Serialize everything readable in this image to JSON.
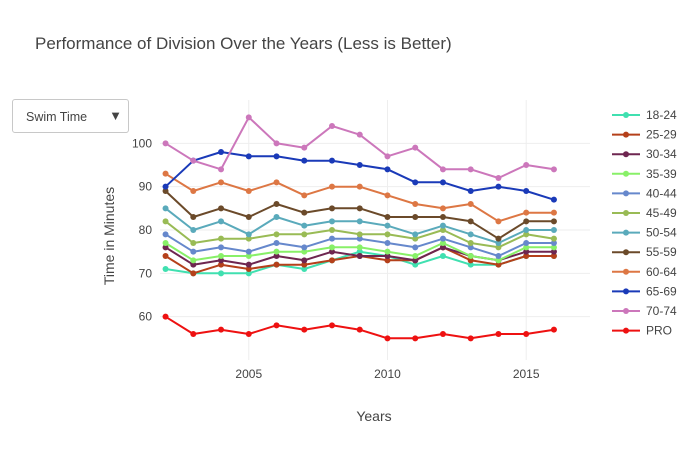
{
  "chart_data": {
    "type": "line",
    "title": "Performance of Division Over the Years (Less is Better)",
    "xlabel": "Years",
    "ylabel": "Time in Minutes",
    "xlim": [
      2001.8,
      2017.3
    ],
    "ylim": [
      50,
      110
    ],
    "xticks": [
      2005,
      2010,
      2015
    ],
    "yticks": [
      60,
      70,
      80,
      90,
      100
    ],
    "grid": true,
    "legend_position": "right",
    "x": [
      2002,
      2003,
      2004,
      2005,
      2006,
      2007,
      2008,
      2009,
      2010,
      2011,
      2012,
      2013,
      2014,
      2015,
      2016
    ],
    "series": [
      {
        "name": "18-24",
        "color": "#40e0b0",
        "values": [
          71,
          70,
          70,
          70,
          72,
          71,
          73,
          75,
          74,
          72,
          74,
          72,
          72,
          74,
          74
        ]
      },
      {
        "name": "25-29",
        "color": "#b5401a",
        "values": [
          74,
          70,
          72,
          71,
          72,
          72,
          73,
          74,
          73,
          73,
          76,
          73,
          72,
          74,
          74
        ]
      },
      {
        "name": "30-34",
        "color": "#6e2650",
        "values": [
          76,
          72,
          73,
          72,
          74,
          73,
          75,
          74,
          74,
          73,
          76,
          74,
          73,
          75,
          75
        ]
      },
      {
        "name": "35-39",
        "color": "#88f068",
        "values": [
          77,
          73,
          74,
          74,
          75,
          75,
          76,
          76,
          75,
          74,
          77,
          74,
          73,
          76,
          76
        ]
      },
      {
        "name": "40-44",
        "color": "#6688cc",
        "values": [
          79,
          75,
          76,
          75,
          77,
          76,
          78,
          78,
          77,
          76,
          78,
          76,
          74,
          77,
          77
        ]
      },
      {
        "name": "45-49",
        "color": "#99bb55",
        "values": [
          82,
          77,
          78,
          78,
          79,
          79,
          80,
          79,
          79,
          78,
          80,
          77,
          76,
          79,
          78
        ]
      },
      {
        "name": "50-54",
        "color": "#5aaabb",
        "values": [
          85,
          80,
          82,
          79,
          83,
          81,
          82,
          82,
          81,
          79,
          81,
          79,
          77,
          80,
          80
        ]
      },
      {
        "name": "55-59",
        "color": "#6b4a2a",
        "values": [
          89,
          83,
          85,
          83,
          86,
          84,
          85,
          85,
          83,
          83,
          83,
          82,
          78,
          82,
          82
        ]
      },
      {
        "name": "60-64",
        "color": "#dd7744",
        "values": [
          93,
          89,
          91,
          89,
          91,
          88,
          90,
          90,
          88,
          86,
          85,
          86,
          82,
          84,
          84
        ]
      },
      {
        "name": "65-69",
        "color": "#1a3ab8",
        "values": [
          90,
          96,
          98,
          97,
          97,
          96,
          96,
          95,
          94,
          91,
          91,
          89,
          90,
          89,
          87
        ]
      },
      {
        "name": "70-74",
        "color": "#cc77bb",
        "values": [
          100,
          96,
          94,
          106,
          100,
          99,
          104,
          102,
          97,
          99,
          94,
          94,
          92,
          95,
          94
        ]
      },
      {
        "name": "PRO",
        "color": "#ee1111",
        "values": [
          60,
          56,
          57,
          56,
          58,
          57,
          58,
          57,
          55,
          55,
          56,
          55,
          56,
          56,
          57
        ]
      }
    ]
  },
  "dropdown": {
    "label": "Swim Time",
    "arrow": "▼"
  }
}
